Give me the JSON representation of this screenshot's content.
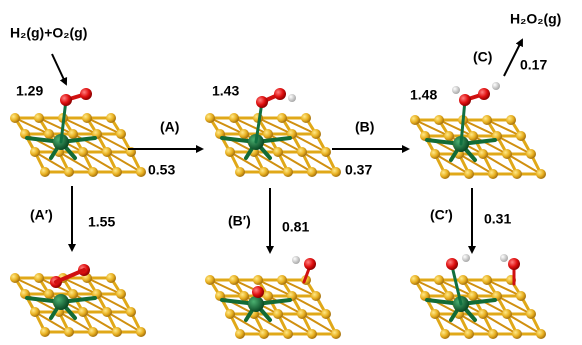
{
  "reactant": "H₂(g)+O₂(g)",
  "product": "H₂O₂(g)",
  "top_states": [
    {
      "energy": "1.29"
    },
    {
      "energy": "1.43"
    },
    {
      "energy": "1.48"
    }
  ],
  "steps": [
    {
      "label": "(A)",
      "value": "0.53"
    },
    {
      "label": "(B)",
      "value": "0.37"
    },
    {
      "label": "(C)",
      "value": "0.17"
    },
    {
      "label": "(A′)",
      "value": "1.55"
    },
    {
      "label": "(B′)",
      "value": "0.81"
    },
    {
      "label": "(C′)",
      "value": "0.31"
    }
  ]
}
